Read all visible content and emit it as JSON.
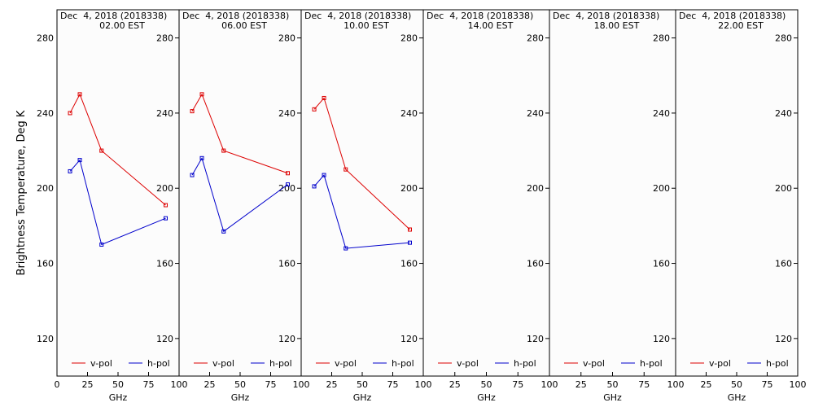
{
  "chart_data": {
    "type": "line",
    "ylabel": "Brightness Temperature, Deg K",
    "xlabel": "GHz",
    "ylim": [
      100,
      295
    ],
    "xlim": [
      0,
      100
    ],
    "y_ticks": [
      120,
      160,
      200,
      240,
      280
    ],
    "x_ticks": [
      0,
      25,
      50,
      75,
      100
    ],
    "legend_entries": [
      "v-pol",
      "h-pol"
    ],
    "legend_placement": "bottom",
    "colors": {
      "v": "#dd0000",
      "h": "#0000cc"
    },
    "panels": [
      {
        "title_line1": "Dec  4, 2018 (2018338)",
        "title_line2": "02.00 EST",
        "series": [
          {
            "name": "v-pol",
            "x": [
              10.7,
              18.7,
              36.5,
              89.0
            ],
            "y": [
              240,
              250,
              220,
              191
            ]
          },
          {
            "name": "h-pol",
            "x": [
              10.7,
              18.7,
              36.5,
              89.0
            ],
            "y": [
              209,
              215,
              170,
              184
            ]
          }
        ]
      },
      {
        "title_line1": "Dec  4, 2018 (2018338)",
        "title_line2": "06.00 EST",
        "series": [
          {
            "name": "v-pol",
            "x": [
              10.7,
              18.7,
              36.5,
              89.0
            ],
            "y": [
              241,
              250,
              220,
              208
            ]
          },
          {
            "name": "h-pol",
            "x": [
              10.7,
              18.7,
              36.5,
              89.0
            ],
            "y": [
              207,
              216,
              177,
              202
            ]
          }
        ]
      },
      {
        "title_line1": "Dec  4, 2018 (2018338)",
        "title_line2": "10.00 EST",
        "series": [
          {
            "name": "v-pol",
            "x": [
              10.7,
              18.7,
              36.5,
              89.0
            ],
            "y": [
              242,
              248,
              210,
              178
            ]
          },
          {
            "name": "h-pol",
            "x": [
              10.7,
              18.7,
              36.5,
              89.0
            ],
            "y": [
              201,
              207,
              168,
              171
            ]
          }
        ]
      },
      {
        "title_line1": "Dec  4, 2018 (2018338)",
        "title_line2": "14.00 EST",
        "series": [
          {
            "name": "v-pol",
            "x": [],
            "y": []
          },
          {
            "name": "h-pol",
            "x": [],
            "y": []
          }
        ]
      },
      {
        "title_line1": "Dec  4, 2018 (2018338)",
        "title_line2": "18.00 EST",
        "series": [
          {
            "name": "v-pol",
            "x": [],
            "y": []
          },
          {
            "name": "h-pol",
            "x": [],
            "y": []
          }
        ]
      },
      {
        "title_line1": "Dec  4, 2018 (2018338)",
        "title_line2": "22.00 EST",
        "series": [
          {
            "name": "v-pol",
            "x": [],
            "y": []
          },
          {
            "name": "h-pol",
            "x": [],
            "y": []
          }
        ]
      }
    ]
  }
}
